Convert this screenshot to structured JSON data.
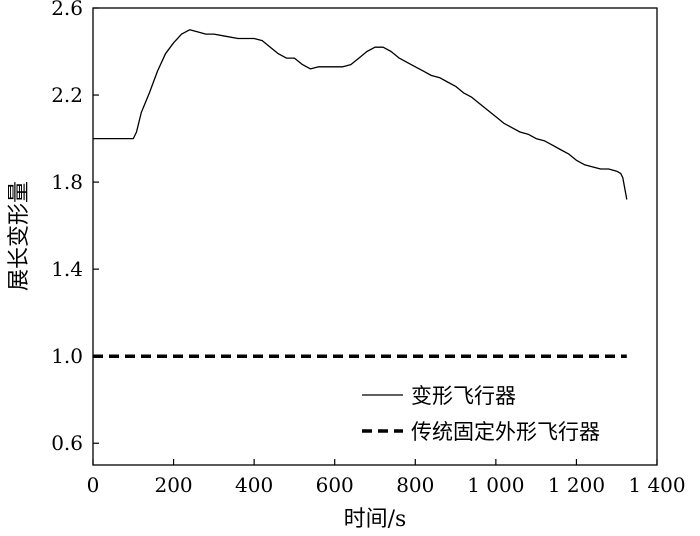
{
  "chart_data": {
    "type": "line",
    "xlabel": "时间/s",
    "ylabel": "展长变形量",
    "xlim": [
      0,
      1400
    ],
    "ylim": [
      0.5,
      2.6
    ],
    "x_ticks": [
      0,
      200,
      400,
      600,
      800,
      1000,
      1200,
      1400
    ],
    "x_tick_labels": [
      "0",
      "200",
      "400",
      "600",
      "800",
      "1 000",
      "1 200",
      "1 400"
    ],
    "y_ticks": [
      0.6,
      1.0,
      1.4,
      1.8,
      2.2,
      2.6
    ],
    "y_tick_labels": [
      "0.6",
      "1.0",
      "1.4",
      "1.8",
      "2.2",
      "2.6"
    ],
    "grid": false,
    "legend_position": "lower-right",
    "series": [
      {
        "name": "变形飞行器",
        "line_style": "solid",
        "color": "#000000",
        "x": [
          0,
          100,
          108,
          120,
          140,
          160,
          180,
          200,
          220,
          240,
          260,
          280,
          300,
          330,
          360,
          380,
          400,
          420,
          440,
          460,
          480,
          500,
          520,
          540,
          560,
          580,
          600,
          620,
          640,
          660,
          680,
          700,
          720,
          740,
          760,
          780,
          800,
          820,
          840,
          860,
          880,
          900,
          920,
          940,
          960,
          980,
          1000,
          1020,
          1040,
          1060,
          1080,
          1100,
          1120,
          1140,
          1160,
          1180,
          1200,
          1220,
          1240,
          1260,
          1280,
          1300,
          1310,
          1315,
          1320,
          1325
        ],
        "y": [
          2.0,
          2.0,
          2.03,
          2.12,
          2.21,
          2.31,
          2.39,
          2.44,
          2.48,
          2.5,
          2.49,
          2.48,
          2.48,
          2.47,
          2.46,
          2.46,
          2.46,
          2.45,
          2.42,
          2.39,
          2.37,
          2.37,
          2.34,
          2.32,
          2.33,
          2.33,
          2.33,
          2.33,
          2.34,
          2.37,
          2.4,
          2.42,
          2.42,
          2.4,
          2.37,
          2.35,
          2.33,
          2.31,
          2.29,
          2.28,
          2.26,
          2.24,
          2.21,
          2.19,
          2.16,
          2.13,
          2.1,
          2.07,
          2.05,
          2.03,
          2.02,
          2.0,
          1.99,
          1.97,
          1.95,
          1.93,
          1.9,
          1.88,
          1.87,
          1.86,
          1.86,
          1.85,
          1.84,
          1.82,
          1.77,
          1.72
        ]
      },
      {
        "name": "传统固定外形飞行器",
        "line_style": "dashed",
        "color": "#000000",
        "x": [
          0,
          1325
        ],
        "y": [
          1.0,
          1.0
        ]
      }
    ]
  }
}
